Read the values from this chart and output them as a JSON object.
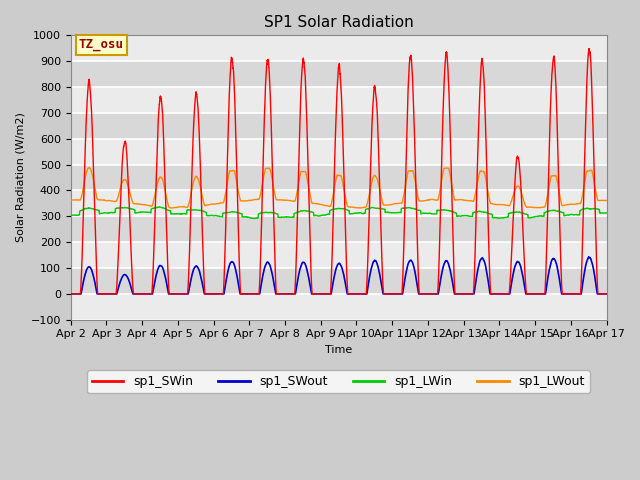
{
  "title": "SP1 Solar Radiation",
  "xlabel": "Time",
  "ylabel": "Solar Radiation (W/m2)",
  "ylim": [
    -100,
    1000
  ],
  "xlim": [
    0,
    15
  ],
  "x_tick_labels": [
    "Apr 2",
    "Apr 3",
    "Apr 4",
    "Apr 5",
    "Apr 6",
    "Apr 7",
    "Apr 8",
    "Apr 9",
    "Apr 10",
    "Apr 11",
    "Apr 12",
    "Apr 13",
    "Apr 14",
    "Apr 15",
    "Apr 16",
    "Apr 17"
  ],
  "x_tick_positions": [
    0,
    1,
    2,
    3,
    4,
    5,
    6,
    7,
    8,
    9,
    10,
    11,
    12,
    13,
    14,
    15
  ],
  "legend_entries": [
    "sp1_SWin",
    "sp1_SWout",
    "sp1_LWin",
    "sp1_LWout"
  ],
  "colors": {
    "sp1_SWin": "#ff0000",
    "sp1_SWout": "#0000cc",
    "sp1_LWin": "#00cc00",
    "sp1_LWout": "#ff8800"
  },
  "annotation_text": "TZ_osu",
  "annotation_color": "#990000",
  "annotation_bg": "#ffffcc",
  "annotation_border": "#cc9900",
  "background_color": "#cccccc",
  "plot_bg": "#e0e0e0",
  "grid_color": "#ffffff",
  "title_fontsize": 11,
  "axis_fontsize": 8,
  "legend_fontsize": 9,
  "n_points": 7200,
  "days": 15,
  "SWin_daily_peaks": [
    820,
    590,
    760,
    770,
    910,
    905,
    905,
    875,
    800,
    920,
    925,
    890,
    530,
    920,
    940,
    940
  ],
  "SWout_daily_peaks": [
    105,
    75,
    110,
    108,
    125,
    122,
    122,
    118,
    130,
    130,
    128,
    138,
    125,
    138,
    142,
    140
  ],
  "LWin_base": 305,
  "LWout_base": 350,
  "LWout_peak": 470
}
